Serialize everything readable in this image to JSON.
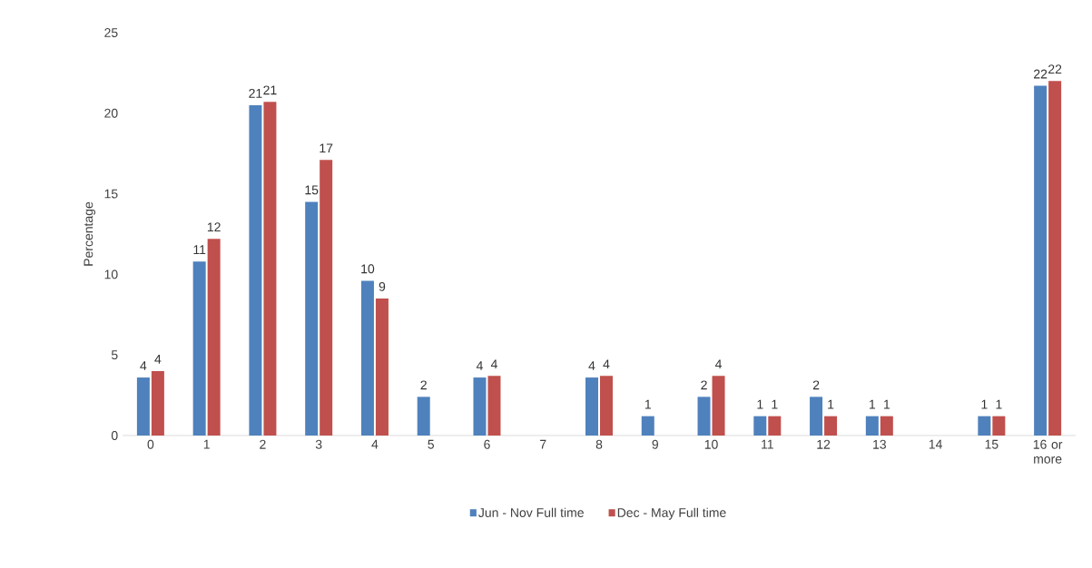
{
  "chart_data": {
    "type": "bar",
    "ylabel": "Percentage",
    "categories": [
      "0",
      "1",
      "2",
      "3",
      "4",
      "5",
      "6",
      "7",
      "8",
      "9",
      "10",
      "11",
      "12",
      "13",
      "14",
      "15",
      "16 or more"
    ],
    "series": [
      {
        "name": "Jun - Nov Full time",
        "color": "#4f81bd",
        "values": [
          3.6,
          10.8,
          20.5,
          14.5,
          9.6,
          2.4,
          3.6,
          null,
          3.6,
          1.2,
          2.4,
          1.2,
          2.4,
          1.2,
          null,
          1.2,
          21.7
        ],
        "value_labels": [
          "4",
          "11",
          "21",
          "15",
          "10",
          "2",
          "4",
          null,
          "4",
          "1",
          "2",
          "1",
          "2",
          "1",
          null,
          "1",
          "22"
        ]
      },
      {
        "name": "Dec - May Full time",
        "color": "#c0504d",
        "values": [
          4.0,
          12.2,
          20.7,
          17.1,
          8.5,
          null,
          3.7,
          null,
          3.7,
          null,
          3.7,
          1.2,
          1.2,
          1.2,
          null,
          1.2,
          22.0
        ],
        "value_labels": [
          "4",
          "12",
          "21",
          "17",
          "9",
          null,
          "4",
          null,
          "4",
          null,
          "4",
          "1",
          "1",
          "1",
          null,
          "1",
          "22"
        ]
      }
    ],
    "ylim": [
      0,
      25
    ],
    "yticks": [
      0,
      5,
      10,
      15,
      20,
      25
    ],
    "grid": false,
    "legend": "bottom"
  }
}
